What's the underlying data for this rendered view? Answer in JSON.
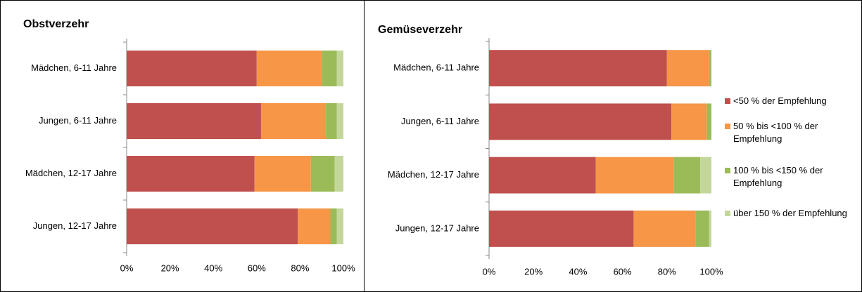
{
  "chart_data": [
    {
      "type": "stacked_bar_horizontal",
      "title": "Obstverzehr",
      "categories": [
        "Mädchen, 6-11 Jahre",
        "Jungen, 6-11 Jahre",
        "Mädchen, 12-17 Jahre",
        "Jungen, 12-17 Jahre"
      ],
      "series": [
        {
          "color": "#c0504d",
          "values": [
            60,
            62,
            59,
            79
          ]
        },
        {
          "color": "#f79646",
          "values": [
            30,
            30,
            26,
            15
          ]
        },
        {
          "color": "#9bbb59",
          "values": [
            7,
            5,
            11,
            3
          ]
        },
        {
          "color": "#c4d79b",
          "values": [
            3,
            3,
            4,
            3
          ]
        }
      ],
      "xlim": [
        0,
        100
      ],
      "xticks": [
        {
          "value": 0,
          "label": "0%"
        },
        {
          "value": 20,
          "label": "20%"
        },
        {
          "value": 40,
          "label": "40%"
        },
        {
          "value": 60,
          "label": "60%"
        },
        {
          "value": 80,
          "label": "80%"
        },
        {
          "value": 100,
          "label": "100%"
        }
      ],
      "legend": false
    },
    {
      "type": "stacked_bar_horizontal",
      "title": "Gemüseverzehr",
      "categories": [
        "Mädchen, 6-11 Jahre",
        "Jungen, 6-11 Jahre",
        "Mädchen, 12-17 Jahre",
        "Jungen, 12-17 Jahre"
      ],
      "series": [
        {
          "name": "<50 % der Empfehlung",
          "color": "#c0504d",
          "values": [
            80,
            82,
            48,
            65
          ]
        },
        {
          "name": "50 % bis <100 % der Empfehlung",
          "color": "#f79646",
          "values": [
            19,
            16,
            35,
            28
          ]
        },
        {
          "name": "100 % bis <150 % der Empfehlung",
          "color": "#9bbb59",
          "values": [
            1,
            2,
            12,
            6
          ]
        },
        {
          "name": "über 150 % der Empfehlung",
          "color": "#c4d79b",
          "values": [
            0,
            0,
            5,
            1
          ]
        }
      ],
      "xlim": [
        0,
        100
      ],
      "xticks": [
        {
          "value": 0,
          "label": "0%"
        },
        {
          "value": 20,
          "label": "20%"
        },
        {
          "value": 40,
          "label": "40%"
        },
        {
          "value": 60,
          "label": "60%"
        },
        {
          "value": 80,
          "label": "80%"
        },
        {
          "value": 100,
          "label": "100%"
        }
      ],
      "legend": "right"
    }
  ]
}
